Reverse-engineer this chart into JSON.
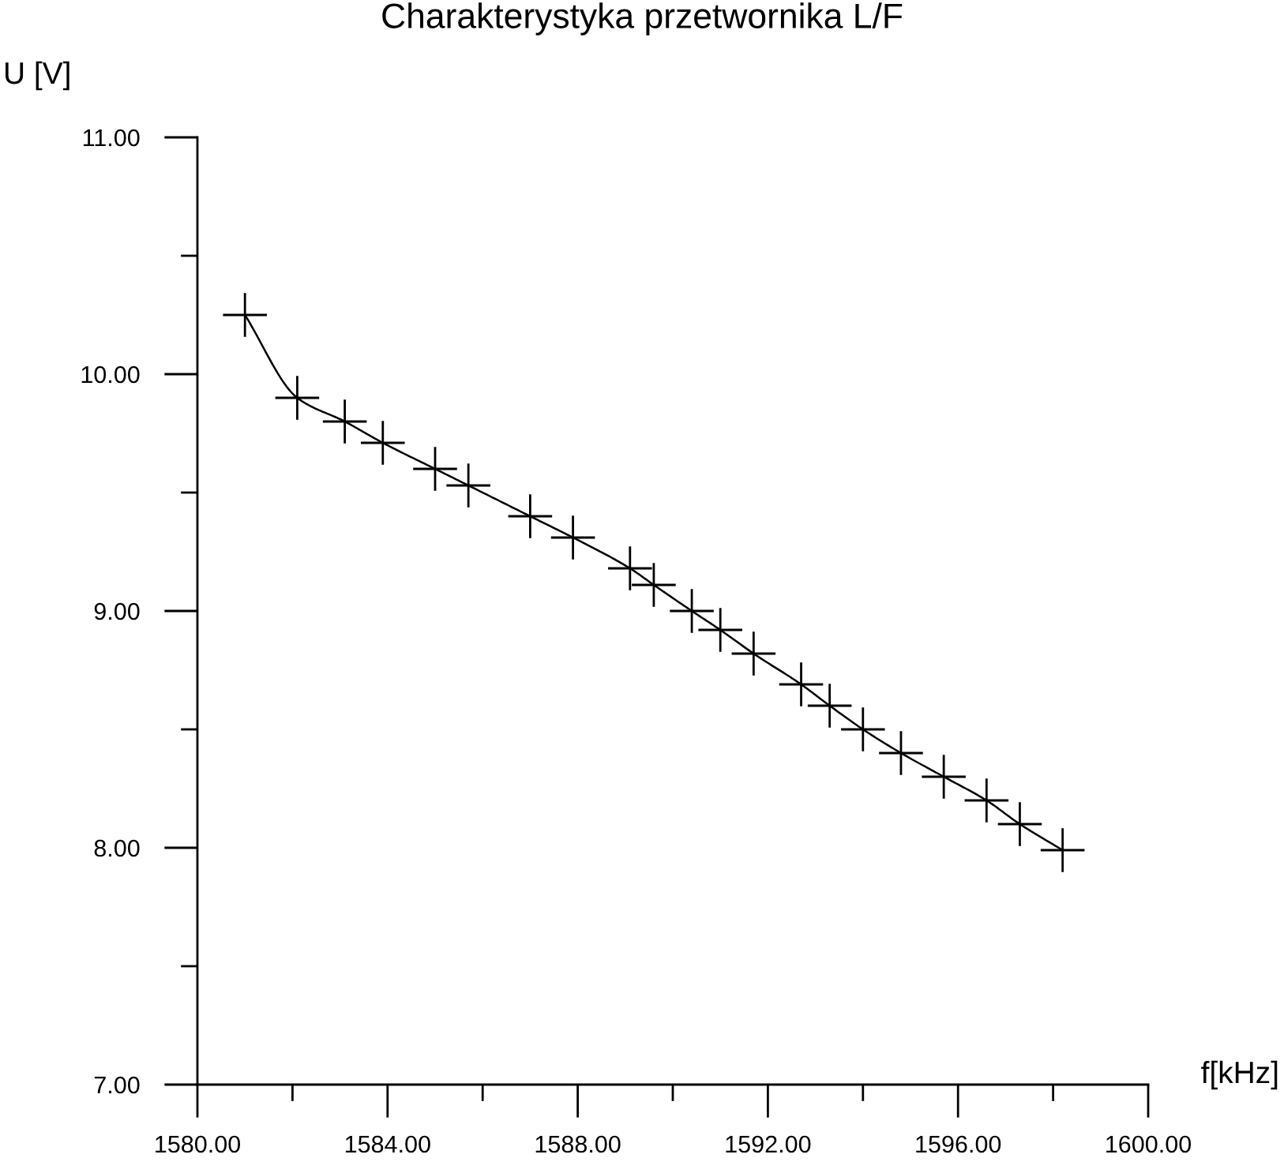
{
  "chart_data": {
    "type": "line",
    "title": "Charakterystyka przetwornika L/F",
    "xlabel": "f[kHz]",
    "ylabel": "U [V]",
    "x": [
      1581.0,
      1582.1,
      1583.1,
      1583.9,
      1585.0,
      1585.7,
      1587.0,
      1587.9,
      1589.1,
      1589.6,
      1590.4,
      1591.0,
      1591.7,
      1592.7,
      1593.3,
      1594.0,
      1594.8,
      1595.7,
      1596.6,
      1597.3,
      1598.2
    ],
    "values": [
      10.25,
      9.9,
      9.8,
      9.71,
      9.6,
      9.53,
      9.4,
      9.31,
      9.18,
      9.11,
      9.0,
      8.92,
      8.82,
      8.69,
      8.6,
      8.5,
      8.4,
      8.3,
      8.2,
      8.1,
      7.99
    ],
    "color": "#000000",
    "marker": "cross",
    "line_style": "solid",
    "xlim": [
      1580,
      1600
    ],
    "ylim": [
      7,
      11
    ],
    "xticks": [
      {
        "value": 1580,
        "label": "1580.00"
      },
      {
        "value": 1582,
        "label": null
      },
      {
        "value": 1584,
        "label": "1584.00"
      },
      {
        "value": 1586,
        "label": null
      },
      {
        "value": 1588,
        "label": "1588.00"
      },
      {
        "value": 1590,
        "label": null
      },
      {
        "value": 1592,
        "label": "1592.00"
      },
      {
        "value": 1594,
        "label": null
      },
      {
        "value": 1596,
        "label": "1596.00"
      },
      {
        "value": 1598,
        "label": null
      },
      {
        "value": 1600,
        "label": "1600.00"
      }
    ],
    "yticks": [
      {
        "value": 7,
        "label": "7.00"
      },
      {
        "value": 7.5,
        "label": null
      },
      {
        "value": 8,
        "label": "8.00"
      },
      {
        "value": 8.5,
        "label": null
      },
      {
        "value": 9,
        "label": "9.00"
      },
      {
        "value": 9.5,
        "label": null
      },
      {
        "value": 10,
        "label": "10.00"
      },
      {
        "value": 10.5,
        "label": null
      },
      {
        "value": 11,
        "label": "11.00"
      }
    ]
  }
}
